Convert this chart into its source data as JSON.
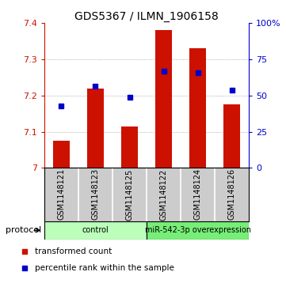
{
  "title": "GDS5367 / ILMN_1906158",
  "samples": [
    "GSM1148121",
    "GSM1148123",
    "GSM1148125",
    "GSM1148122",
    "GSM1148124",
    "GSM1148126"
  ],
  "red_bar_values": [
    7.075,
    7.22,
    7.115,
    7.38,
    7.33,
    7.175
  ],
  "blue_square_values": [
    7.17,
    7.225,
    7.195,
    7.268,
    7.262,
    7.215
  ],
  "ylim_left": [
    7.0,
    7.4
  ],
  "ylim_right": [
    0,
    100
  ],
  "yticks_left": [
    7.0,
    7.1,
    7.2,
    7.3,
    7.4
  ],
  "ytick_labels_left": [
    "7",
    "7.1",
    "7.2",
    "7.3",
    "7.4"
  ],
  "yticks_right": [
    0,
    25,
    50,
    75,
    100
  ],
  "ytick_labels_right": [
    "0",
    "25",
    "50",
    "75",
    "100%"
  ],
  "bar_color": "#cc1100",
  "square_color": "#0000cc",
  "protocol_groups": [
    {
      "label": "control",
      "samples": [
        0,
        1,
        2
      ],
      "color": "#bbffbb"
    },
    {
      "label": "miR-542-3p overexpression",
      "samples": [
        3,
        4,
        5
      ],
      "color": "#77ee77"
    }
  ],
  "protocol_label": "protocol",
  "legend_red": "transformed count",
  "legend_blue": "percentile rank within the sample",
  "grid_color": "#999999",
  "bar_base": 7.0,
  "sample_area_color": "#cccccc",
  "title_fontsize": 10,
  "tick_fontsize": 8,
  "label_fontsize": 8
}
